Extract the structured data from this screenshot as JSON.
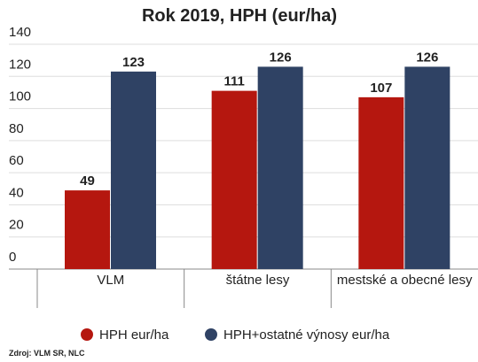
{
  "chart_data": {
    "type": "bar",
    "title": "Rok 2019, HPH (eur/ha)",
    "categories": [
      "VLM",
      "štátne lesy",
      "mestské a obecné lesy"
    ],
    "series": [
      {
        "name": "HPH eur/ha",
        "color": "#b5170f",
        "values": [
          49,
          111,
          107
        ]
      },
      {
        "name": "HPH+ostatné výnosy eur/ha",
        "color": "#2f4264",
        "values": [
          123,
          126,
          126
        ]
      }
    ],
    "ylim": [
      0,
      140
    ],
    "yticks": [
      0,
      20,
      40,
      60,
      80,
      100,
      120,
      140
    ],
    "grid": true,
    "source": "Zdroj: VLM SR, NLC"
  }
}
